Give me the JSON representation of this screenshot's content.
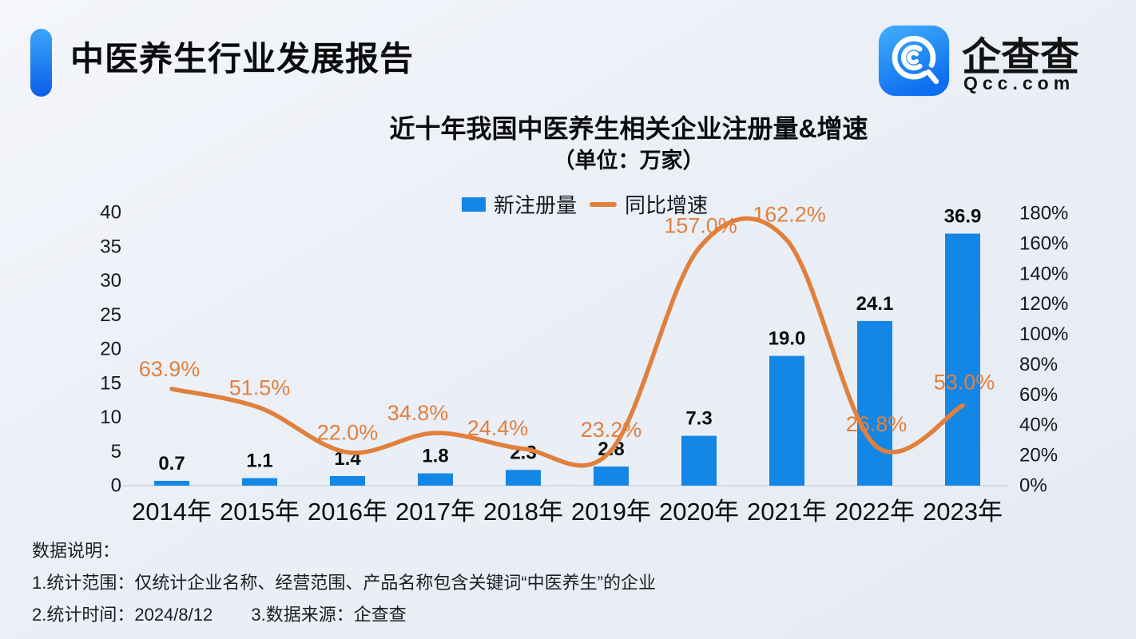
{
  "header": {
    "title": "中医养生行业发展报告",
    "accent_colors": [
      "#3aa5f8",
      "#0b5fe8"
    ],
    "logo": {
      "brand": "企查查",
      "domain": "Qcc.com",
      "icon_colors": [
        "#41b0fa",
        "#0d6ef0"
      ]
    }
  },
  "chart_data": {
    "type": "bar",
    "title": "近十年我国中医养生相关企业注册量&增速",
    "subtitle": "（单位：万家）",
    "unit": "万家",
    "categories": [
      "2014年",
      "2015年",
      "2016年",
      "2017年",
      "2018年",
      "2019年",
      "2020年",
      "2021年",
      "2022年",
      "2023年"
    ],
    "series": [
      {
        "name": "新注册量",
        "type": "bar",
        "color": "#1486e5",
        "axis": "left",
        "values": [
          0.7,
          1.1,
          1.4,
          1.8,
          2.3,
          2.8,
          7.3,
          19.0,
          24.1,
          36.9
        ],
        "labels": [
          "0.7",
          "1.1",
          "1.4",
          "1.8",
          "2.3",
          "2.8",
          "7.3",
          "19.0",
          "24.1",
          "36.9"
        ]
      },
      {
        "name": "同比增速",
        "type": "line",
        "color": "#e0803d",
        "axis": "right",
        "values": [
          63.9,
          51.5,
          22.0,
          34.8,
          24.4,
          23.2,
          157.0,
          162.2,
          26.8,
          53.0
        ],
        "labels": [
          "63.9%",
          "51.5%",
          "22.0%",
          "34.8%",
          "24.4%",
          "23.2%",
          "157.0%",
          "162.2%",
          "26.8%",
          "53.0%"
        ]
      }
    ],
    "left_axis": {
      "min": 0,
      "max": 40,
      "step": 5,
      "ticks": [
        "0",
        "5",
        "10",
        "15",
        "20",
        "25",
        "30",
        "35",
        "40"
      ]
    },
    "right_axis": {
      "min": 0,
      "max": 180,
      "step": 20,
      "ticks": [
        "0%",
        "20%",
        "40%",
        "60%",
        "80%",
        "100%",
        "120%",
        "140%",
        "160%",
        "180%"
      ]
    },
    "legend": [
      "新注册量",
      "同比增速"
    ],
    "legend_position": "top-center",
    "grid": false
  },
  "footer": {
    "heading": "数据说明：",
    "note_scope": "1.统计范围：仅统计企业名称、经营范围、产品名称包含关键词“中医养生”的企业",
    "note_time": "2.统计时间：2024/8/12",
    "note_source": "3.数据来源：企查查"
  }
}
